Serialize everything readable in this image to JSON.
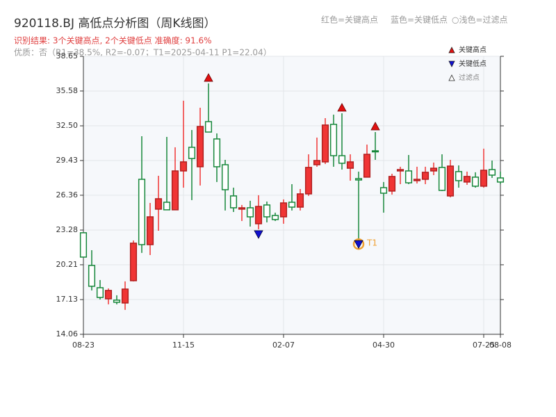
{
  "chart_data": {
    "type": "candlestick",
    "title": "920118.BJ 高低点分析图（周K线图）",
    "header_notes": [
      "红色=关键高点",
      "蓝色=关键低点",
      "○浅色=过滤点"
    ],
    "subtitle": "识别结果: 3个关键高点, 2个关键低点  准确度: 91.6%",
    "subtitle2": "优质：否（R1=38.5%, R2=-0.07；T1=2025-04-11 P1=22.04）",
    "categories": [
      "08-23",
      null,
      null,
      null,
      null,
      null,
      null,
      null,
      null,
      null,
      null,
      null,
      "11-15",
      null,
      null,
      null,
      null,
      null,
      null,
      null,
      null,
      null,
      null,
      null,
      "02-07",
      null,
      null,
      null,
      null,
      null,
      null,
      null,
      null,
      null,
      null,
      null,
      "04-30",
      null,
      null,
      null,
      null,
      null,
      null,
      null,
      null,
      null,
      null,
      null,
      "07-25",
      null,
      "08-08"
    ],
    "open": [
      23.04,
      20.15,
      18.18,
      17.2,
      17.08,
      16.83,
      18.8,
      27.77,
      21.99,
      25.13,
      25.74,
      25.07,
      28.51,
      30.6,
      28.88,
      32.87,
      31.34,
      29.06,
      26.3,
      25.13,
      25.25,
      23.84,
      25.5,
      24.57,
      24.45,
      25.74,
      25.31,
      26.48,
      29.06,
      29.31,
      32.63,
      29.86,
      28.75,
      27.83,
      27.96,
      30.29,
      27.03,
      26.73,
      28.51,
      28.51,
      27.65,
      27.77,
      28.51,
      28.82,
      26.3,
      28.45,
      27.53,
      27.96,
      27.16,
      28.63,
      27.89
    ],
    "high": [
      23.04,
      21.5,
      18.86,
      18.12,
      17.51,
      18.74,
      22.36,
      31.58,
      25.68,
      28.08,
      31.52,
      30.6,
      34.72,
      32.13,
      34.1,
      36.25,
      31.83,
      29.49,
      27.03,
      25.5,
      25.87,
      26.36,
      25.8,
      24.82,
      25.99,
      27.34,
      26.91,
      29.98,
      31.46,
      33.18,
      33.49,
      33.61,
      29.98,
      28.45,
      30.84,
      31.95,
      27.53,
      28.26,
      28.88,
      29.92,
      28.88,
      28.88,
      29.25,
      29.98,
      29.49,
      29.0,
      28.45,
      28.39,
      30.48,
      29.43,
      28.45
    ],
    "low": [
      20.89,
      17.94,
      17.14,
      16.71,
      16.71,
      16.22,
      18.74,
      21.26,
      21.07,
      23.22,
      25.07,
      25.07,
      27.03,
      25.93,
      27.22,
      31.95,
      27.53,
      25.01,
      24.88,
      24.08,
      23.59,
      23.35,
      23.96,
      24.08,
      23.84,
      25.01,
      25.01,
      26.3,
      28.88,
      29.12,
      28.88,
      28.63,
      27.65,
      22.04,
      27.96,
      29.49,
      24.82,
      26.42,
      27.34,
      27.34,
      27.4,
      27.34,
      28.14,
      26.73,
      26.17,
      27.03,
      27.28,
      27.03,
      27.03,
      27.89,
      27.34
    ],
    "close": [
      20.89,
      18.31,
      17.32,
      17.94,
      16.89,
      18.06,
      22.12,
      21.99,
      24.45,
      26.05,
      25.07,
      28.51,
      29.31,
      29.61,
      32.44,
      31.95,
      28.88,
      26.85,
      25.25,
      25.25,
      24.45,
      25.37,
      24.45,
      24.21,
      25.68,
      25.31,
      26.48,
      28.82,
      29.43,
      32.57,
      29.86,
      29.19,
      29.31,
      27.71,
      29.98,
      30.23,
      26.54,
      28.02,
      28.63,
      27.46,
      27.77,
      28.39,
      28.75,
      26.79,
      28.94,
      27.65,
      28.02,
      27.16,
      28.57,
      28.14,
      27.53
    ],
    "up_color": "#f03535",
    "down_color": "#16873a",
    "high_marker_color": "#e01010",
    "low_marker_color": "#1010d0",
    "key_high_indices": [
      15,
      31,
      35
    ],
    "key_low_indices": [
      21,
      33
    ],
    "annotation": {
      "text": "T1",
      "index": 33,
      "color": "#f0a030"
    },
    "legend": {
      "position": "upper right",
      "items": [
        "关键高点",
        "关键低点",
        "过滤点"
      ]
    },
    "ylim": [
      14.06,
      38.65
    ],
    "yticks": [
      14.06,
      17.13,
      20.21,
      23.28,
      26.36,
      29.43,
      {
        "value": 32.5,
        "label": "32.50"
      },
      35.58,
      38.65
    ],
    "grid": true
  }
}
